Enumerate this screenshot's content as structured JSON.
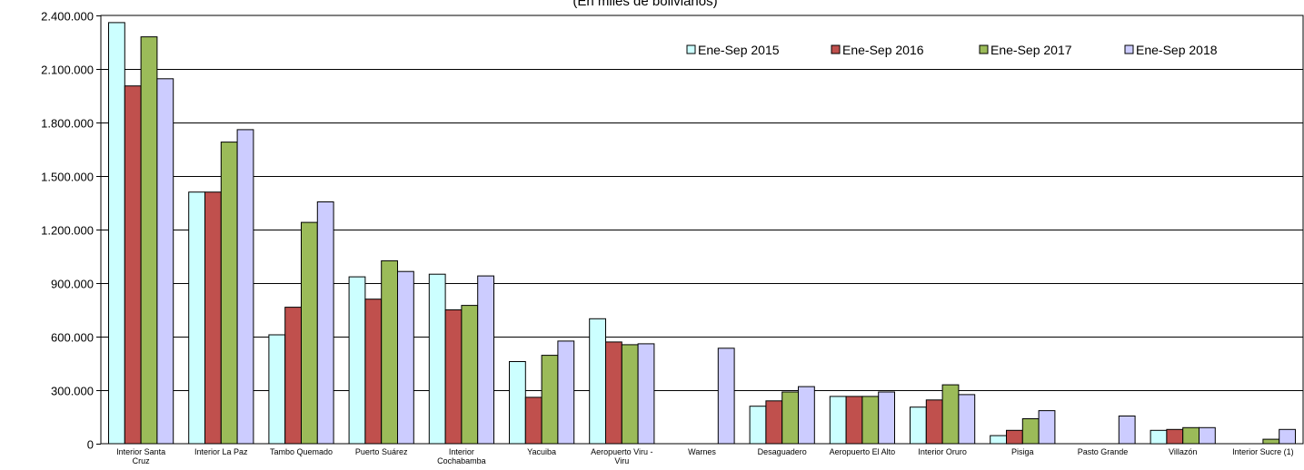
{
  "subtitle": "(En miles de bolivianos)",
  "chart_data": {
    "type": "bar",
    "title": "",
    "subtitle": "(En miles de bolivianos)",
    "xlabel": "",
    "ylabel": "",
    "ylim": [
      0,
      2400000
    ],
    "yticks": [
      0,
      300000,
      600000,
      900000,
      1200000,
      1500000,
      1800000,
      2100000,
      2400000
    ],
    "ytick_labels": [
      "0",
      "300.000",
      "600.000",
      "900.000",
      "1.200.000",
      "1.500.000",
      "1.800.000",
      "2.100.000",
      "2.400.000"
    ],
    "grid": true,
    "legend_position": "top-right",
    "categories": [
      [
        "Interior Santa",
        "Cruz"
      ],
      [
        "Interior La Paz"
      ],
      [
        "Tambo Quemado"
      ],
      [
        "Puerto Suárez"
      ],
      [
        "Interior",
        "Cochabamba"
      ],
      [
        "Yacuiba"
      ],
      [
        "Aeropuerto Viru -",
        "Viru"
      ],
      [
        "Warnes"
      ],
      [
        "Desaguadero"
      ],
      [
        "Aeropuerto El Alto"
      ],
      [
        "Interior Oruro"
      ],
      [
        "Pisiga"
      ],
      [
        "Pasto Grande"
      ],
      [
        "Villazón"
      ],
      [
        "Interior Sucre (1)"
      ]
    ],
    "series": [
      {
        "name": "Ene-Sep 2015",
        "color": "#ccffff",
        "values": [
          2360000,
          1410000,
          610000,
          935000,
          950000,
          460000,
          700000,
          0,
          210000,
          265000,
          205000,
          45000,
          0,
          75000,
          0
        ]
      },
      {
        "name": "Ene-Sep 2016",
        "color": "#c0504d",
        "values": [
          2005000,
          1410000,
          765000,
          810000,
          750000,
          260000,
          570000,
          0,
          240000,
          265000,
          245000,
          75000,
          0,
          80000,
          0
        ]
      },
      {
        "name": "Ene-Sep 2017",
        "color": "#9bbb59",
        "values": [
          2280000,
          1690000,
          1240000,
          1025000,
          775000,
          495000,
          555000,
          0,
          290000,
          265000,
          330000,
          140000,
          0,
          90000,
          25000
        ]
      },
      {
        "name": "Ene-Sep 2018",
        "color": "#ccccff",
        "values": [
          2045000,
          1760000,
          1355000,
          965000,
          940000,
          575000,
          560000,
          535000,
          320000,
          290000,
          275000,
          185000,
          155000,
          90000,
          80000
        ]
      }
    ]
  }
}
